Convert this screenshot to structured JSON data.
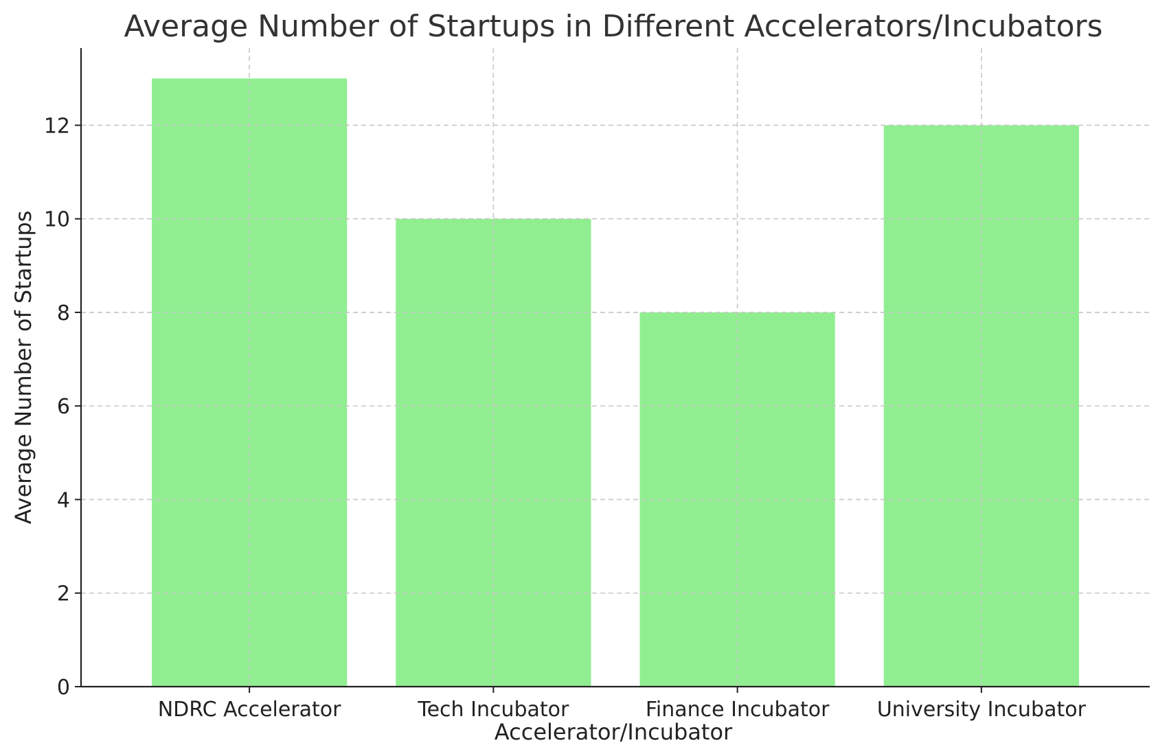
{
  "chart_data": {
    "type": "bar",
    "title": "Average Number of Startups in Different Accelerators/Incubators",
    "xlabel": "Accelerator/Incubator",
    "ylabel": "Average Number of Startups",
    "categories": [
      "NDRC Accelerator",
      "Tech Incubator",
      "Finance Incubator",
      "University Incubator"
    ],
    "values": [
      13,
      10,
      8,
      12
    ],
    "ylim": [
      0,
      13.65
    ],
    "yticks": [
      0,
      2,
      4,
      6,
      8,
      10,
      12
    ],
    "grid": true,
    "bar_color": "#90ee90"
  }
}
